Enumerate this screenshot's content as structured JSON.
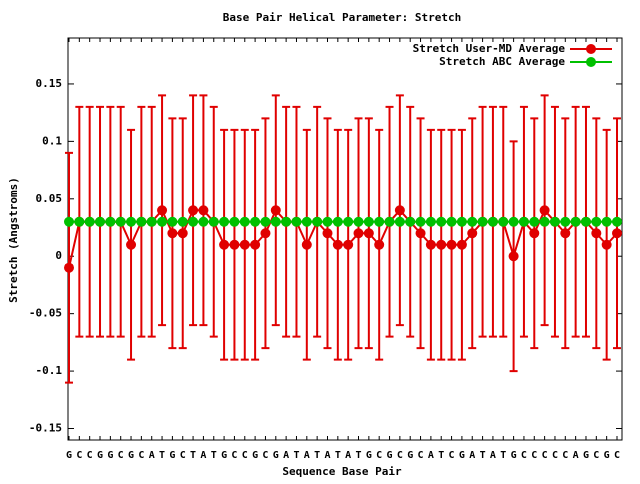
{
  "chart_data": {
    "type": "errorline",
    "title": "Base Pair Helical Parameter: Stretch",
    "x_label": "Sequence Base Pair",
    "y_label": "Stretch (Angstroms)",
    "categories": [
      "G",
      "C",
      "C",
      "G",
      "G",
      "C",
      "G",
      "C",
      "A",
      "T",
      "G",
      "C",
      "T",
      "A",
      "T",
      "G",
      "C",
      "C",
      "G",
      "C",
      "G",
      "A",
      "T",
      "A",
      "T",
      "A",
      "T",
      "A",
      "T",
      "G",
      "C",
      "G",
      "C",
      "G",
      "C",
      "A",
      "T",
      "C",
      "G",
      "A",
      "T",
      "A",
      "T",
      "G",
      "C",
      "C",
      "C",
      "C",
      "C",
      "A",
      "G",
      "C",
      "G",
      "C"
    ],
    "series": [
      {
        "name": "Stretch User-MD Average",
        "color": "#e00000",
        "values": [
          -0.01,
          0.03,
          0.03,
          0.03,
          0.03,
          0.03,
          0.01,
          0.03,
          0.03,
          0.04,
          0.02,
          0.02,
          0.04,
          0.04,
          0.03,
          0.01,
          0.01,
          0.01,
          0.01,
          0.02,
          0.04,
          0.03,
          0.03,
          0.01,
          0.03,
          0.02,
          0.01,
          0.01,
          0.02,
          0.02,
          0.01,
          0.03,
          0.04,
          0.03,
          0.02,
          0.01,
          0.01,
          0.01,
          0.01,
          0.02,
          0.03,
          0.03,
          0.03,
          0.0,
          0.03,
          0.02,
          0.04,
          0.03,
          0.02,
          0.03,
          0.03,
          0.02,
          0.01,
          0.02
        ],
        "errors": [
          0.1,
          0.1,
          0.1,
          0.1,
          0.1,
          0.1,
          0.1,
          0.1,
          0.1,
          0.1,
          0.1,
          0.1,
          0.1,
          0.1,
          0.1,
          0.1,
          0.1,
          0.1,
          0.1,
          0.1,
          0.1,
          0.1,
          0.1,
          0.1,
          0.1,
          0.1,
          0.1,
          0.1,
          0.1,
          0.1,
          0.1,
          0.1,
          0.1,
          0.1,
          0.1,
          0.1,
          0.1,
          0.1,
          0.1,
          0.1,
          0.1,
          0.1,
          0.1,
          0.1,
          0.1,
          0.1,
          0.1,
          0.1,
          0.1,
          0.1,
          0.1,
          0.1,
          0.1,
          0.1
        ]
      },
      {
        "name": "Stretch ABC Average",
        "color": "#00c000",
        "values": [
          0.03,
          0.03,
          0.03,
          0.03,
          0.03,
          0.03,
          0.03,
          0.03,
          0.03,
          0.03,
          0.03,
          0.03,
          0.03,
          0.03,
          0.03,
          0.03,
          0.03,
          0.03,
          0.03,
          0.03,
          0.03,
          0.03,
          0.03,
          0.03,
          0.03,
          0.03,
          0.03,
          0.03,
          0.03,
          0.03,
          0.03,
          0.03,
          0.03,
          0.03,
          0.03,
          0.03,
          0.03,
          0.03,
          0.03,
          0.03,
          0.03,
          0.03,
          0.03,
          0.03,
          0.03,
          0.03,
          0.03,
          0.03,
          0.03,
          0.03,
          0.03,
          0.03,
          0.03,
          0.03
        ]
      }
    ],
    "ylim": [
      -0.16,
      0.19
    ],
    "yticks": [
      -0.15,
      -0.1,
      -0.05,
      0,
      0.05,
      0.1,
      0.15
    ],
    "legend": "top-right"
  }
}
